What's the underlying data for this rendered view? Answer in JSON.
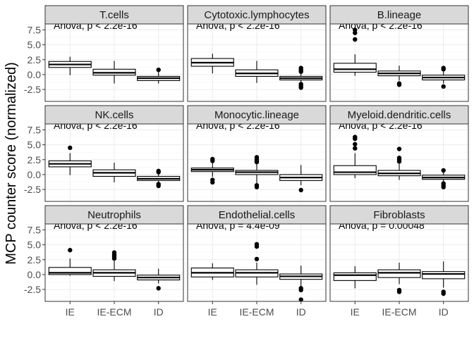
{
  "chart_data": {
    "type": "box",
    "ylabel": "MCP counter score (normalized)",
    "xlabel": "",
    "categories": [
      "IE",
      "IE-ECM",
      "ID"
    ],
    "ylim": [
      -4.5,
      8.5
    ],
    "yticks": [
      -2.5,
      0.0,
      2.5,
      5.0,
      7.5
    ],
    "ytick_labels": [
      "-2.5",
      "0.0",
      "2.5",
      "5.0",
      "7.5"
    ],
    "grid": true,
    "facets": [
      {
        "name": "T.cells",
        "annotation": "Anova, p < 2.2e-16",
        "boxes": [
          {
            "category": "IE",
            "min": -0.1,
            "q1": 1.2,
            "median": 1.7,
            "q3": 2.2,
            "max": 3.0,
            "outliers": []
          },
          {
            "category": "IE-ECM",
            "min": -1.5,
            "q1": -0.1,
            "median": 0.3,
            "q3": 0.9,
            "max": 2.3,
            "outliers": []
          },
          {
            "category": "ID",
            "min": -1.5,
            "q1": -1.0,
            "median": -0.6,
            "q3": -0.3,
            "max": 0.5,
            "outliers": [
              0.8
            ]
          }
        ]
      },
      {
        "name": "Cytotoxic.lymphocytes",
        "annotation": "Anova, p < 2.2e-16",
        "boxes": [
          {
            "category": "IE",
            "min": 0.2,
            "q1": 1.4,
            "median": 2.0,
            "q3": 2.7,
            "max": 3.5,
            "outliers": []
          },
          {
            "category": "IE-ECM",
            "min": -1.4,
            "q1": -0.3,
            "median": 0.2,
            "q3": 0.8,
            "max": 2.3,
            "outliers": []
          },
          {
            "category": "ID",
            "min": -1.3,
            "q1": -0.9,
            "median": -0.6,
            "q3": -0.3,
            "max": 0.3,
            "outliers": [
              1.1,
              0.8,
              0.5,
              -1.6,
              -1.9,
              -2.2
            ]
          }
        ]
      },
      {
        "name": "B.lineage",
        "annotation": "Anova, p < 2.2e-16",
        "boxes": [
          {
            "category": "IE",
            "min": -0.2,
            "q1": 0.4,
            "median": 0.9,
            "q3": 1.9,
            "max": 3.4,
            "outliers": [
              5.9,
              7.0,
              7.5
            ]
          },
          {
            "category": "IE-ECM",
            "min": -1.0,
            "q1": -0.2,
            "median": 0.2,
            "q3": 0.6,
            "max": 1.5,
            "outliers": [
              -1.5,
              -1.7
            ]
          },
          {
            "category": "ID",
            "min": -1.5,
            "q1": -0.9,
            "median": -0.5,
            "q3": -0.1,
            "max": 0.8,
            "outliers": [
              1.1,
              0.9,
              -2.0
            ]
          }
        ]
      },
      {
        "name": "NK.cells",
        "annotation": "Anova, p < 2.2e-16",
        "boxes": [
          {
            "category": "IE",
            "min": -0.1,
            "q1": 1.3,
            "median": 1.8,
            "q3": 2.3,
            "max": 3.6,
            "outliers": [
              4.5
            ]
          },
          {
            "category": "IE-ECM",
            "min": -1.3,
            "q1": -0.3,
            "median": 0.3,
            "q3": 0.8,
            "max": 2.0,
            "outliers": []
          },
          {
            "category": "ID",
            "min": -1.5,
            "q1": -1.0,
            "median": -0.7,
            "q3": -0.3,
            "max": 0.3,
            "outliers": [
              0.6,
              0.4,
              -1.6,
              -1.9
            ]
          }
        ]
      },
      {
        "name": "Monocytic.lineage",
        "annotation": "Anova, p < 2.2e-16",
        "boxes": [
          {
            "category": "IE",
            "min": -0.4,
            "q1": 0.5,
            "median": 0.8,
            "q3": 1.1,
            "max": 2.0,
            "outliers": [
              2.6,
              2.3,
              -0.9,
              -1.3
            ]
          },
          {
            "category": "IE-ECM",
            "min": -1.5,
            "q1": 0.0,
            "median": 0.4,
            "q3": 0.7,
            "max": 1.8,
            "outliers": [
              2.9,
              2.6,
              2.3,
              2.1,
              -1.8,
              -2.1
            ]
          },
          {
            "category": "ID",
            "min": -1.8,
            "q1": -1.0,
            "median": -0.5,
            "q3": 0.0,
            "max": 1.6,
            "outliers": [
              -2.6
            ]
          }
        ]
      },
      {
        "name": "Myeloid.dendritic.cells",
        "annotation": "Anova, p < 2.2e-16",
        "boxes": [
          {
            "category": "IE",
            "min": -0.6,
            "q1": 0.0,
            "median": 0.4,
            "q3": 1.5,
            "max": 3.6,
            "outliers": [
              6.3,
              6.0,
              5.1,
              4.4
            ]
          },
          {
            "category": "IE-ECM",
            "min": -0.9,
            "q1": -0.2,
            "median": 0.2,
            "q3": 0.7,
            "max": 1.8,
            "outliers": [
              4.3,
              2.8,
              2.5,
              2.2
            ]
          },
          {
            "category": "ID",
            "min": -1.3,
            "q1": -0.8,
            "median": -0.5,
            "q3": -0.1,
            "max": 0.4,
            "outliers": [
              0.7,
              -1.5,
              -1.8,
              -2.1
            ]
          }
        ]
      },
      {
        "name": "Neutrophils",
        "annotation": "Anova, p < 2.2e-16",
        "boxes": [
          {
            "category": "IE",
            "min": -0.2,
            "q1": 0.0,
            "median": 0.3,
            "q3": 1.2,
            "max": 2.7,
            "outliers": [
              4.1
            ]
          },
          {
            "category": "IE-ECM",
            "min": -1.1,
            "q1": -0.3,
            "median": 0.3,
            "q3": 0.8,
            "max": 2.3,
            "outliers": [
              3.7,
              3.3,
              3.0,
              2.7
            ]
          },
          {
            "category": "ID",
            "min": -1.5,
            "q1": -0.9,
            "median": -0.5,
            "q3": -0.1,
            "max": 1.0,
            "outliers": [
              -2.3
            ]
          }
        ]
      },
      {
        "name": "Endothelial.cells",
        "annotation": "Anova, p = 4.4e-09",
        "boxes": [
          {
            "category": "IE",
            "min": -0.9,
            "q1": -0.4,
            "median": 0.3,
            "q3": 1.1,
            "max": 1.9,
            "outliers": []
          },
          {
            "category": "IE-ECM",
            "min": -1.7,
            "q1": -0.4,
            "median": 0.3,
            "q3": 0.8,
            "max": 2.0,
            "outliers": [
              5.1,
              4.7,
              2.6
            ]
          },
          {
            "category": "ID",
            "min": -2.0,
            "q1": -0.8,
            "median": -0.3,
            "q3": 0.1,
            "max": 1.5,
            "outliers": [
              -2.3,
              -2.6,
              -4.2
            ]
          }
        ]
      },
      {
        "name": "Fibroblasts",
        "annotation": "Anova, p = 0.00048",
        "boxes": [
          {
            "category": "IE",
            "min": -2.3,
            "q1": -1.0,
            "median": -0.1,
            "q3": 0.3,
            "max": 1.4,
            "outliers": []
          },
          {
            "category": "IE-ECM",
            "min": -1.6,
            "q1": -0.5,
            "median": 0.3,
            "q3": 0.8,
            "max": 2.0,
            "outliers": [
              -2.6,
              -2.9
            ]
          },
          {
            "category": "ID",
            "min": -2.2,
            "q1": -0.7,
            "median": 0.1,
            "q3": 0.5,
            "max": 2.2,
            "outliers": [
              -2.9,
              -3.2
            ]
          }
        ]
      }
    ]
  }
}
